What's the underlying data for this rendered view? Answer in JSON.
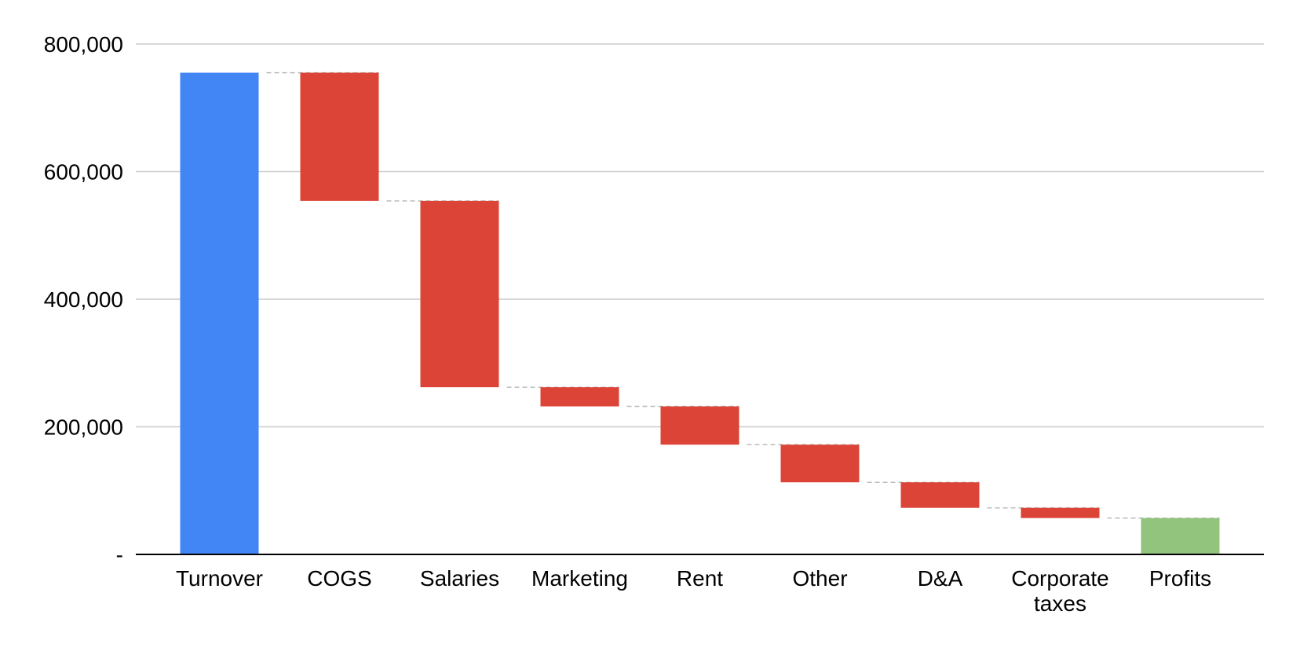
{
  "chart_data": {
    "type": "waterfall",
    "title": "",
    "xlabel": "",
    "ylabel": "",
    "ylim": [
      0,
      800000
    ],
    "y_ticks": [
      {
        "value": 0,
        "label": "-"
      },
      {
        "value": 200000,
        "label": "200,000"
      },
      {
        "value": 400000,
        "label": "400,000"
      },
      {
        "value": 600000,
        "label": "600,000"
      },
      {
        "value": 800000,
        "label": "800,000"
      }
    ],
    "grid": true,
    "legend": "none",
    "colors": {
      "total": "#4285F4",
      "decrease": "#DB4437",
      "final": "#93C47D",
      "grid": "#cccccc",
      "axis": "#000000",
      "connector": "#bbbbbb"
    },
    "categories": [
      {
        "lines": [
          "Turnover"
        ]
      },
      {
        "lines": [
          "COGS"
        ]
      },
      {
        "lines": [
          "Salaries"
        ]
      },
      {
        "lines": [
          "Marketing"
        ]
      },
      {
        "lines": [
          "Rent"
        ]
      },
      {
        "lines": [
          "Other"
        ]
      },
      {
        "lines": [
          "D&A"
        ]
      },
      {
        "lines": [
          "Corporate",
          "taxes"
        ]
      },
      {
        "lines": [
          "Profits"
        ]
      }
    ],
    "bars": [
      {
        "kind": "total",
        "start": 0,
        "end": 755000
      },
      {
        "kind": "decrease",
        "start": 755000,
        "end": 554000
      },
      {
        "kind": "decrease",
        "start": 554000,
        "end": 262000
      },
      {
        "kind": "decrease",
        "start": 262000,
        "end": 232000
      },
      {
        "kind": "decrease",
        "start": 232000,
        "end": 172000
      },
      {
        "kind": "decrease",
        "start": 172000,
        "end": 113000
      },
      {
        "kind": "decrease",
        "start": 113000,
        "end": 73000
      },
      {
        "kind": "decrease",
        "start": 73000,
        "end": 57000
      },
      {
        "kind": "final",
        "start": 0,
        "end": 57000
      }
    ]
  }
}
